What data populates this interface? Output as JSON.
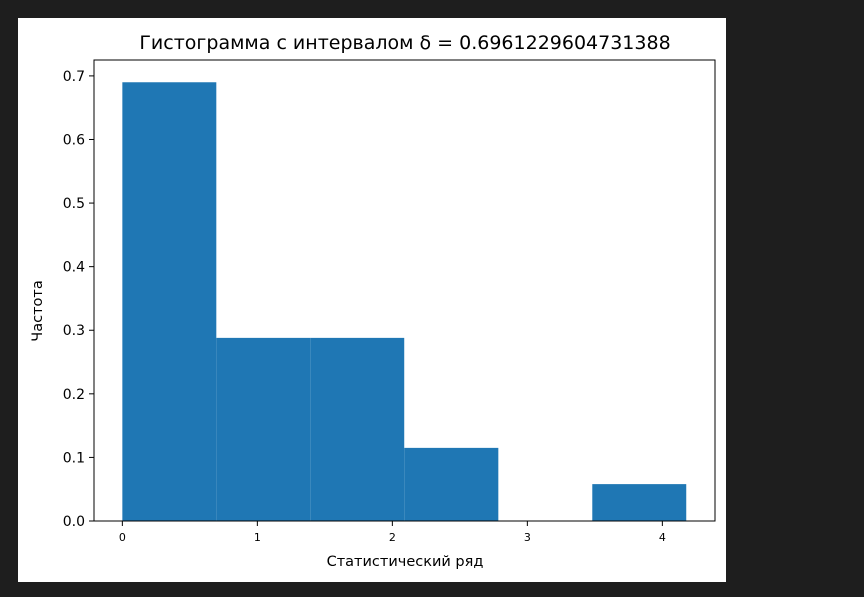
{
  "chart_data": {
    "type": "bar",
    "title": "Гистограмма с интервалом δ = 0.6961229604731388",
    "xlabel": "Статистический ряд",
    "ylabel": "Частота",
    "bins": [
      {
        "start": 0.0,
        "end": 0.696,
        "value": 0.69
      },
      {
        "start": 0.696,
        "end": 1.392,
        "value": 0.288
      },
      {
        "start": 1.392,
        "end": 2.088,
        "value": 0.288
      },
      {
        "start": 2.088,
        "end": 2.785,
        "value": 0.115
      },
      {
        "start": 2.785,
        "end": 3.481,
        "value": 0.0
      },
      {
        "start": 3.481,
        "end": 4.177,
        "value": 0.058
      }
    ],
    "xlim": [
      -0.21,
      4.39
    ],
    "ylim": [
      0,
      0.725
    ],
    "xticks": [
      0,
      1,
      2,
      3,
      4
    ],
    "xtick_labels": [
      "0",
      "1",
      "2",
      "3",
      "4"
    ],
    "yticks": [
      0.0,
      0.1,
      0.2,
      0.3,
      0.4,
      0.5,
      0.6,
      0.7
    ],
    "ytick_labels": [
      "0.0",
      "0.1",
      "0.2",
      "0.3",
      "0.4",
      "0.5",
      "0.6",
      "0.7"
    ],
    "grid": false,
    "bar_color": "#1f77b4"
  }
}
